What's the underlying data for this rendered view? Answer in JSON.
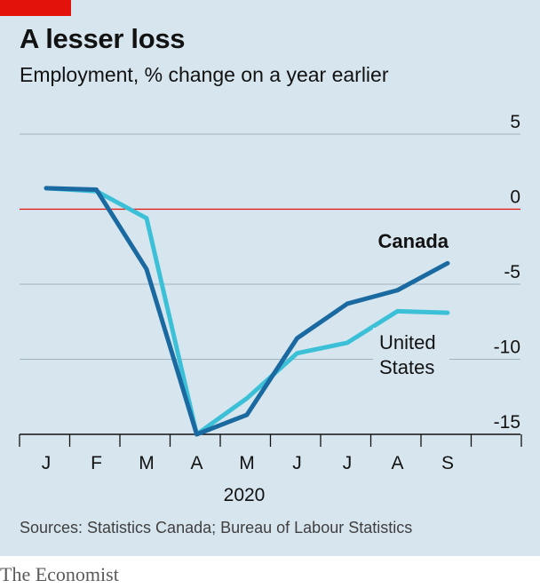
{
  "header": {
    "title": "A lesser loss",
    "subtitle": "Employment, % change on a year earlier"
  },
  "footer": {
    "source": "Sources: Statistics Canada; Bureau of Labour Statistics",
    "brand": "The Economist"
  },
  "colors": {
    "background": "#d7e6ee",
    "canada": "#1a6aa1",
    "united_states": "#3cc0d8",
    "zero_line": "#e3120b",
    "grid": "#9fb3bf",
    "brand_tag": "#e3120b"
  },
  "chart_data": {
    "type": "line",
    "title": "A lesser loss",
    "subtitle": "Employment, % change on a year earlier",
    "x_tick_labels": [
      "J",
      "F",
      "M",
      "A",
      "M",
      "J",
      "J",
      "A",
      "S"
    ],
    "x_axis_year": "2020",
    "ylim": [
      -15,
      5
    ],
    "y_ticks": [
      5,
      0,
      -5,
      -10,
      -15
    ],
    "y_tick_labels": [
      "5",
      "0",
      "-5",
      "-10",
      "-15"
    ],
    "grid": true,
    "series": [
      {
        "name": "Canada",
        "label_lines": [
          "Canada"
        ],
        "values": [
          1.4,
          1.3,
          -4.0,
          -15.0,
          -13.7,
          -8.6,
          -6.3,
          -5.4,
          -3.6
        ]
      },
      {
        "name": "United States",
        "label_lines": [
          "United",
          "States"
        ],
        "values": [
          1.4,
          1.2,
          -0.6,
          -15.0,
          -12.6,
          -9.6,
          -8.9,
          -6.8,
          -6.9
        ]
      }
    ]
  }
}
